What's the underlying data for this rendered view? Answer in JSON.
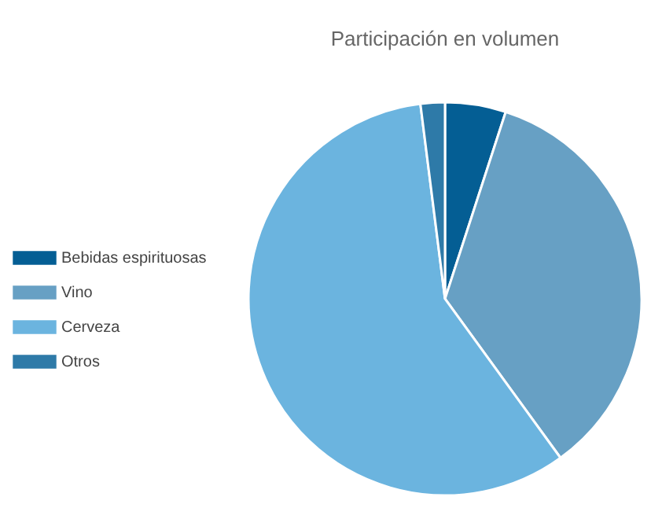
{
  "chart_data": {
    "type": "pie",
    "title": "Participación en volumen",
    "categories": [
      "Bebidas espirituosas",
      "Vino",
      "Cerveza",
      "Otros"
    ],
    "values": [
      5,
      35,
      58,
      2
    ],
    "colors": [
      "#045e94",
      "#67a0c4",
      "#6bb4df",
      "#2e7aa8"
    ],
    "legend": "left"
  }
}
